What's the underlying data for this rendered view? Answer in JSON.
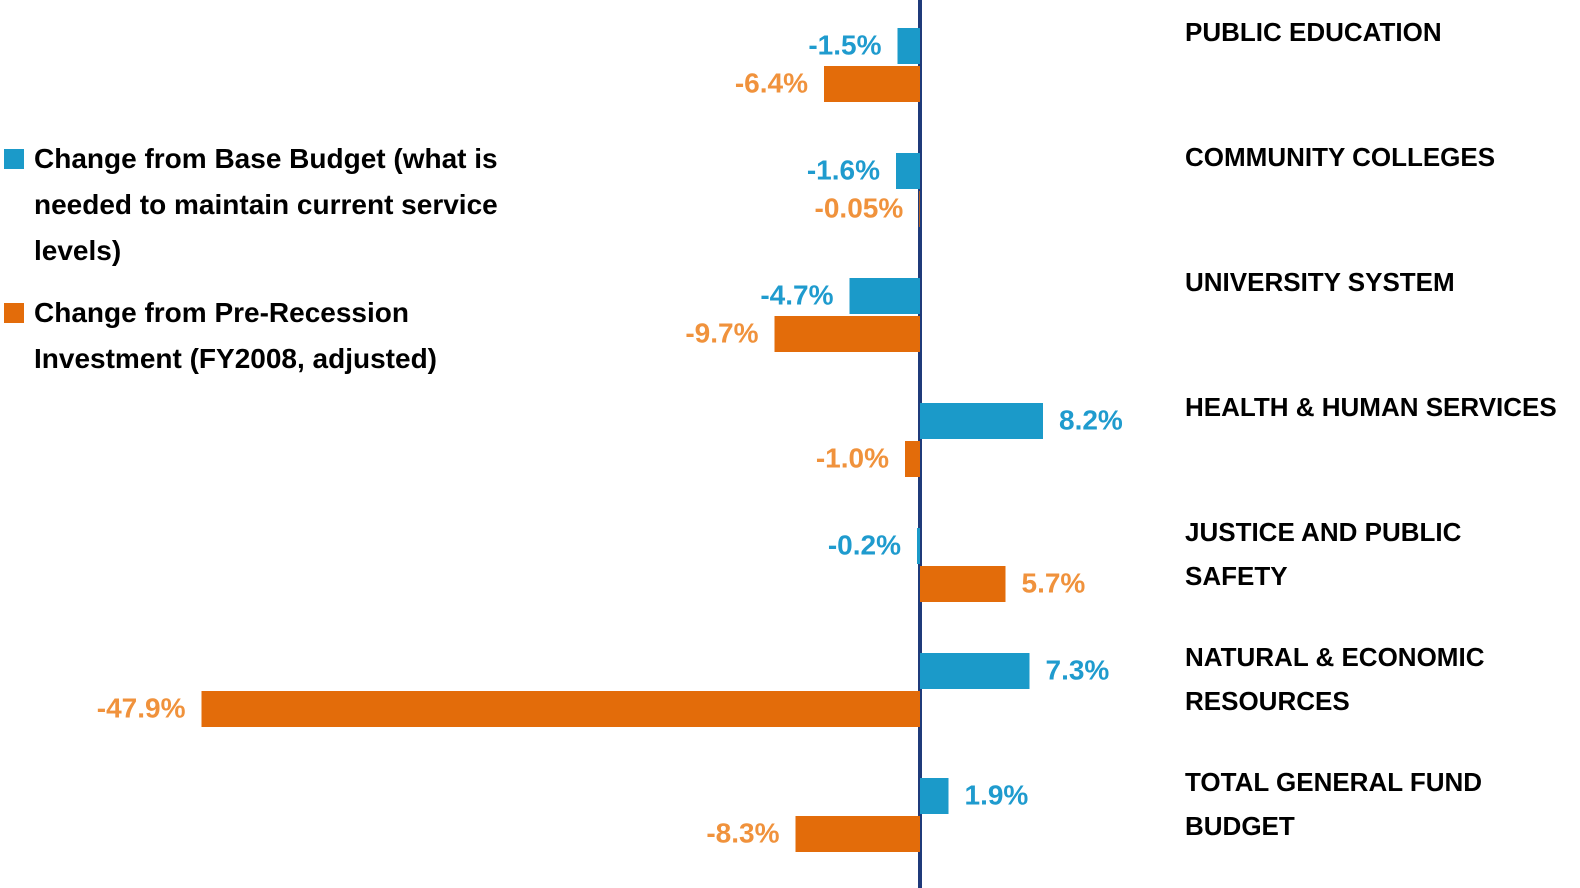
{
  "chart_data": {
    "type": "barh",
    "categories": [
      "PUBLIC EDUCATION",
      "COMMUNITY COLLEGES",
      "UNIVERSITY SYSTEM",
      "HEALTH & HUMAN SERVICES",
      "JUSTICE AND PUBLIC SAFETY",
      "NATURAL & ECONOMIC RESOURCES",
      "TOTAL GENERAL FUND BUDGET"
    ],
    "series": [
      {
        "name": "Change from Base Budget (what is needed to maintain current service levels)",
        "color": "#1b9ac9",
        "label_color": "#1f9bce",
        "values": [
          -1.5,
          -1.6,
          -4.7,
          8.2,
          -0.2,
          7.3,
          1.9
        ],
        "value_labels": [
          "-1.5%",
          "-1.6%",
          "-4.7%",
          "8.2%",
          "-0.2%",
          "7.3%",
          "1.9%"
        ]
      },
      {
        "name": "Change from Pre-Recession Investment (FY2008, adjusted)",
        "color": "#e36c0a",
        "label_color": "#f0923c",
        "values": [
          -6.4,
          -0.05,
          -9.7,
          -1.0,
          5.7,
          -47.9,
          -8.3
        ],
        "value_labels": [
          "-6.4%",
          "-0.05%",
          "-9.7%",
          "-1.0%",
          "5.7%",
          "-47.9%",
          "-8.3%"
        ]
      }
    ],
    "xlim": [
      -60,
      40
    ],
    "legend": "left"
  }
}
